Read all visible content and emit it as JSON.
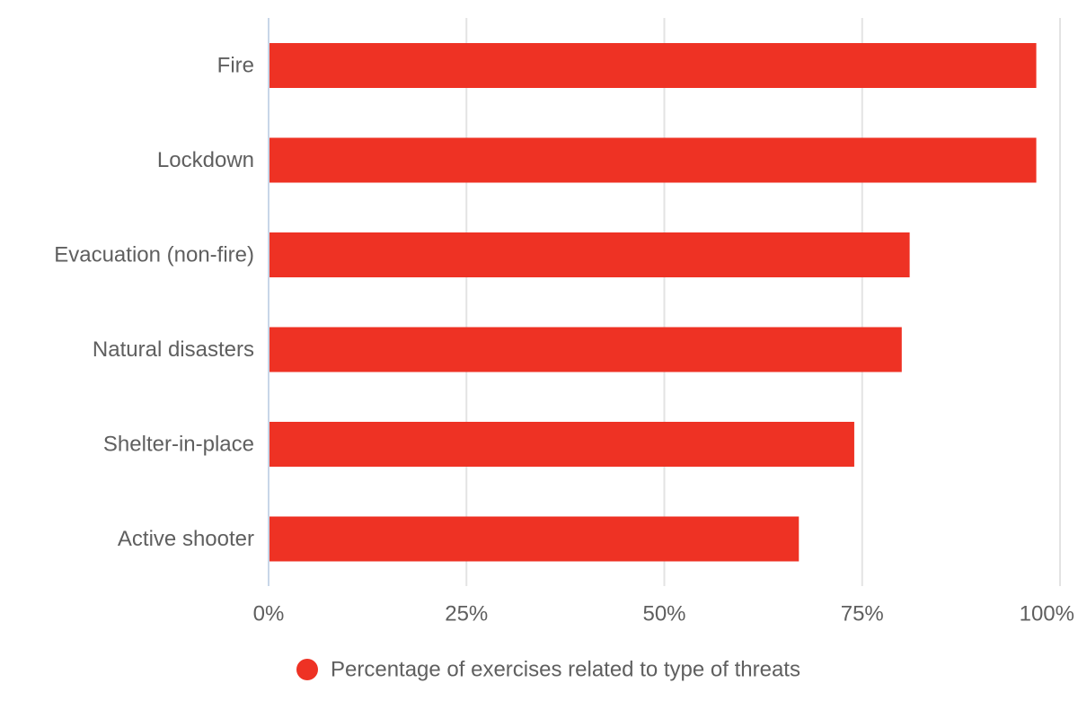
{
  "chart_data": {
    "type": "bar",
    "orientation": "horizontal",
    "categories": [
      "Fire",
      "Lockdown",
      "Evacuation (non-fire)",
      "Natural disasters",
      "Shelter-in-place",
      "Active shooter"
    ],
    "series": [
      {
        "name": "Percentage of exercises related to type of threats",
        "values": [
          97,
          97,
          81,
          80,
          74,
          67
        ],
        "color": "#ee3224"
      }
    ],
    "xlim": [
      0,
      100
    ],
    "x_ticks": [
      0,
      25,
      50,
      75,
      100
    ],
    "x_tick_labels": [
      "0%",
      "25%",
      "50%",
      "75%",
      "100%"
    ],
    "title": "",
    "xlabel": "",
    "ylabel": "",
    "grid": true,
    "legend": {
      "placement": "bottom-center"
    },
    "colors": {
      "bar": "#ee3224",
      "grid": "#e3e3e3",
      "axis": "#c8d6e8",
      "text": "#5f5f5f"
    }
  }
}
